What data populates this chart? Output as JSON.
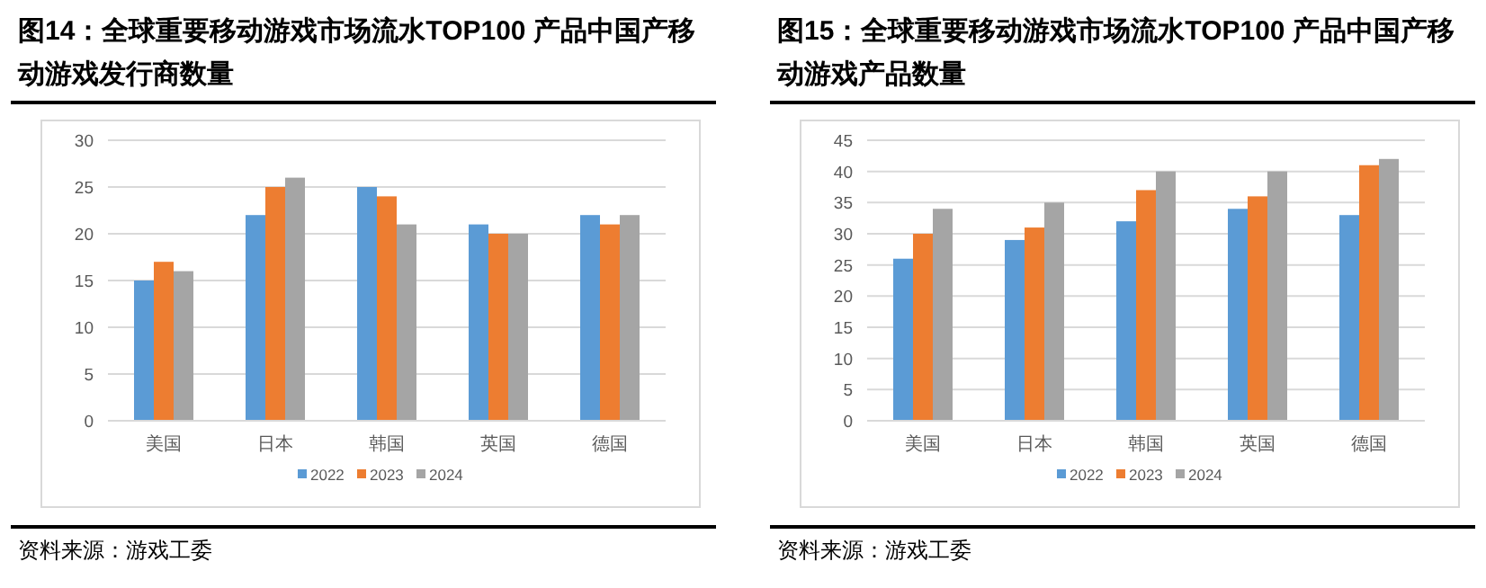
{
  "chart_data": [
    {
      "type": "bar",
      "title": "图14：全球重要移动游戏市场流水TOP100 产品中国产移动游戏发行商数量",
      "categories": [
        "美国",
        "日本",
        "韩国",
        "英国",
        "德国"
      ],
      "series": [
        {
          "name": "2022",
          "color": "#5b9bd5",
          "values": [
            15,
            22,
            25,
            21,
            22
          ]
        },
        {
          "name": "2023",
          "color": "#ed7d31",
          "values": [
            17,
            25,
            24,
            20,
            21
          ]
        },
        {
          "name": "2024",
          "color": "#a5a5a5",
          "values": [
            16,
            26,
            21,
            20,
            22
          ]
        }
      ],
      "ylim": [
        0,
        30
      ],
      "yticks": [
        0,
        5,
        10,
        15,
        20,
        25,
        30
      ],
      "grid": "y",
      "legend": "bottom",
      "annotations": [
        "资料来源：游戏工委"
      ]
    },
    {
      "type": "bar",
      "title": "图15：全球重要移动游戏市场流水TOP100 产品中国产移动游戏产品数量",
      "categories": [
        "美国",
        "日本",
        "韩国",
        "英国",
        "德国"
      ],
      "series": [
        {
          "name": "2022",
          "color": "#5b9bd5",
          "values": [
            26,
            29,
            32,
            34,
            33
          ]
        },
        {
          "name": "2023",
          "color": "#ed7d31",
          "values": [
            30,
            31,
            37,
            36,
            41
          ]
        },
        {
          "name": "2024",
          "color": "#a5a5a5",
          "values": [
            34,
            35,
            40,
            40,
            42
          ]
        }
      ],
      "ylim": [
        0,
        45
      ],
      "yticks": [
        0,
        5,
        10,
        15,
        20,
        25,
        30,
        35,
        40,
        45
      ],
      "grid": "y",
      "legend": "bottom",
      "annotations": [
        "资料来源：游戏工委"
      ]
    }
  ]
}
